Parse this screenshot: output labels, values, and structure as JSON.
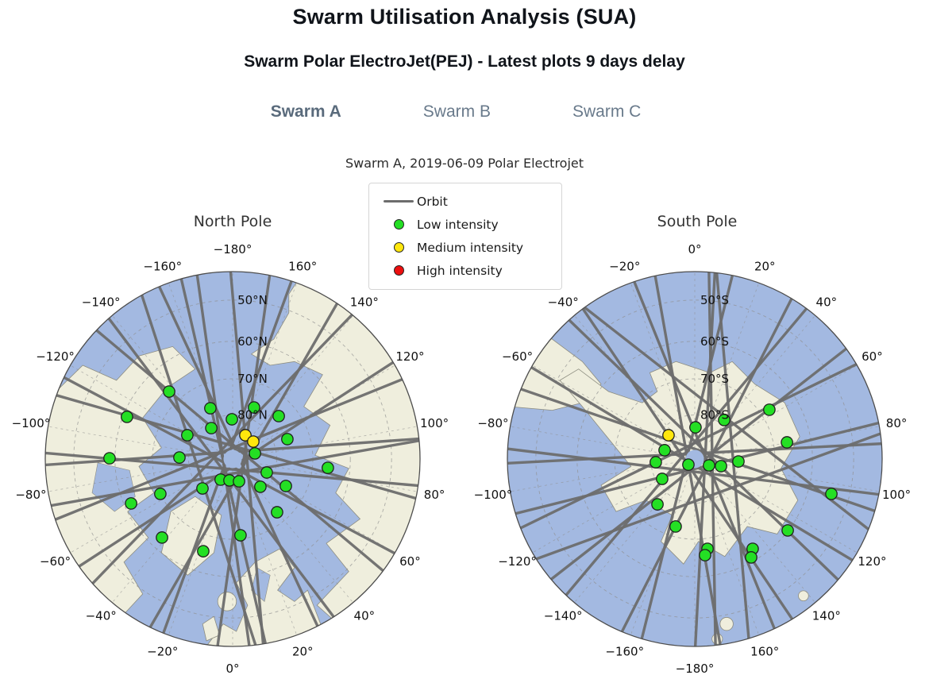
{
  "page": {
    "title": "Swarm Utilisation Analysis (SUA)",
    "subtitle": "Swarm Polar ElectroJet(PEJ) - Latest plots 9 days delay",
    "tabs": [
      {
        "label": "Swarm A",
        "active": true
      },
      {
        "label": "Swarm B",
        "active": false
      },
      {
        "label": "Swarm C",
        "active": false
      }
    ]
  },
  "figure": {
    "title": "Swarm A, 2019-06-09 Polar Electrojet",
    "legend": {
      "items": [
        {
          "swatch": "line",
          "color_key": "orbit",
          "label": "Orbit"
        },
        {
          "swatch": "dot",
          "color_key": "low",
          "label": "Low intensity"
        },
        {
          "swatch": "dot",
          "color_key": "medium",
          "label": "Medium intensity"
        },
        {
          "swatch": "dot",
          "color_key": "high",
          "label": "High intensity"
        }
      ]
    }
  },
  "colors": {
    "ocean": "#a3b9e1",
    "land": "#efeedd",
    "coast": "#8d8d80",
    "grid": "#8f8f8f",
    "orbit": "#6d6d6d",
    "rim": "#4d4d4d",
    "dot_edge": "#1f1f1f",
    "low": "#24df24",
    "medium": "#ffe70d",
    "high": "#ec0f0f",
    "tick_text": "#111111",
    "tab_active": "#5a6b7c",
    "tab_inactive": "#697a8b"
  },
  "chart_data": [
    {
      "type": "polar_orbit_map",
      "pole": "North Pole",
      "hemisphere": "north",
      "lon_tick_step_deg": 20,
      "lon_labels": [
        "−180°",
        "160°",
        "140°",
        "120°",
        "100°",
        "80°",
        "60°",
        "40°",
        "20°",
        "0°",
        "−20°",
        "−40°",
        "−60°",
        "−80°",
        "−100°",
        "−120°",
        "−140°",
        "−160°"
      ],
      "lat_rings": [
        {
          "label": "50°N",
          "r": 0.848
        },
        {
          "label": "60°N",
          "r": 0.628
        },
        {
          "label": "70°N",
          "r": 0.428
        },
        {
          "label": "80°N",
          "r": 0.235
        }
      ],
      "orbits": [
        {
          "phi": 352,
          "d": -12
        },
        {
          "phi": 8,
          "d": 14
        },
        {
          "phi": 20,
          "d": -7
        },
        {
          "phi": 30,
          "d": 16
        },
        {
          "phi": 44,
          "d": -18
        },
        {
          "phi": 57,
          "d": 8
        },
        {
          "phi": 68,
          "d": -13
        },
        {
          "phi": 80,
          "d": 18
        },
        {
          "phi": 86,
          "d": -9
        },
        {
          "phi": 95,
          "d": 13
        },
        {
          "phi": 106,
          "d": -16
        },
        {
          "phi": 118,
          "d": 9
        },
        {
          "phi": 130,
          "d": -14
        },
        {
          "phi": 143,
          "d": 18
        },
        {
          "phi": 155,
          "d": -8
        },
        {
          "phi": 167,
          "d": 12
        },
        {
          "phi": 175,
          "d": -18
        },
        {
          "phi": 162,
          "d": 45
        }
      ],
      "points": [
        {
          "x": -0.339,
          "y": -0.36,
          "i": "low"
        },
        {
          "x": -0.564,
          "y": -0.225,
          "i": "low"
        },
        {
          "x": -0.119,
          "y": -0.271,
          "i": "low"
        },
        {
          "x": 0.114,
          "y": -0.275,
          "i": "low"
        },
        {
          "x": -0.004,
          "y": -0.212,
          "i": "low"
        },
        {
          "x": 0.246,
          "y": -0.229,
          "i": "low"
        },
        {
          "x": -0.114,
          "y": -0.165,
          "i": "low"
        },
        {
          "x": -0.242,
          "y": -0.127,
          "i": "low"
        },
        {
          "x": 0.068,
          "y": -0.127,
          "i": "medium"
        },
        {
          "x": 0.11,
          "y": -0.093,
          "i": "medium"
        },
        {
          "x": 0.292,
          "y": -0.106,
          "i": "low"
        },
        {
          "x": 0.119,
          "y": -0.03,
          "i": "low"
        },
        {
          "x": -0.284,
          "y": -0.008,
          "i": "low"
        },
        {
          "x": -0.657,
          "y": -0.004,
          "i": "low"
        },
        {
          "x": 0.508,
          "y": 0.047,
          "i": "low"
        },
        {
          "x": 0.182,
          "y": 0.072,
          "i": "low"
        },
        {
          "x": -0.064,
          "y": 0.11,
          "i": "low"
        },
        {
          "x": -0.017,
          "y": 0.114,
          "i": "low"
        },
        {
          "x": 0.034,
          "y": 0.119,
          "i": "low"
        },
        {
          "x": -0.161,
          "y": 0.157,
          "i": "low"
        },
        {
          "x": 0.148,
          "y": 0.148,
          "i": "low"
        },
        {
          "x": 0.284,
          "y": 0.144,
          "i": "low"
        },
        {
          "x": -0.386,
          "y": 0.186,
          "i": "low"
        },
        {
          "x": -0.542,
          "y": 0.237,
          "i": "low"
        },
        {
          "x": 0.237,
          "y": 0.284,
          "i": "low"
        },
        {
          "x": 0.042,
          "y": 0.407,
          "i": "low"
        },
        {
          "x": -0.377,
          "y": 0.419,
          "i": "low"
        },
        {
          "x": -0.157,
          "y": 0.492,
          "i": "low"
        }
      ]
    },
    {
      "type": "polar_orbit_map",
      "pole": "South Pole",
      "hemisphere": "south",
      "lon_tick_step_deg": 20,
      "lon_labels": [
        "0°",
        "20°",
        "40°",
        "60°",
        "80°",
        "100°",
        "120°",
        "140°",
        "160°",
        "−180°",
        "−160°",
        "−140°",
        "−120°",
        "−100°",
        "−80°",
        "−60°",
        "−40°",
        "−20°"
      ],
      "lat_rings": [
        {
          "label": "50°S",
          "r": 0.848
        },
        {
          "label": "60°S",
          "r": 0.628
        },
        {
          "label": "70°S",
          "r": 0.428
        },
        {
          "label": "80°S",
          "r": 0.235
        }
      ],
      "orbits": [
        {
          "phi": 3,
          "d": 13
        },
        {
          "phi": 14,
          "d": -10
        },
        {
          "phi": 27,
          "d": 17
        },
        {
          "phi": 40,
          "d": -14
        },
        {
          "phi": 52,
          "d": 8
        },
        {
          "phi": 64,
          "d": -18
        },
        {
          "phi": 76,
          "d": 12
        },
        {
          "phi": 87,
          "d": -7
        },
        {
          "phi": 97,
          "d": 16
        },
        {
          "phi": 109,
          "d": -12
        },
        {
          "phi": 121,
          "d": 7
        },
        {
          "phi": 134,
          "d": -16
        },
        {
          "phi": 146,
          "d": 11
        },
        {
          "phi": 158,
          "d": -13
        },
        {
          "phi": 170,
          "d": 9
        },
        {
          "phi": 179,
          "d": -22
        },
        {
          "phi": 175,
          "d": -48
        },
        {
          "phi": 128,
          "d": -65
        },
        {
          "phi": 70,
          "d": 50
        }
      ],
      "points": [
        {
          "x": 0.398,
          "y": -0.263,
          "i": "low"
        },
        {
          "x": 0.157,
          "y": -0.208,
          "i": "low"
        },
        {
          "x": 0.004,
          "y": -0.169,
          "i": "low"
        },
        {
          "x": -0.14,
          "y": -0.127,
          "i": "medium"
        },
        {
          "x": 0.492,
          "y": -0.089,
          "i": "low"
        },
        {
          "x": -0.161,
          "y": -0.047,
          "i": "low"
        },
        {
          "x": -0.208,
          "y": 0.017,
          "i": "low"
        },
        {
          "x": -0.034,
          "y": 0.03,
          "i": "low"
        },
        {
          "x": 0.076,
          "y": 0.034,
          "i": "low"
        },
        {
          "x": 0.14,
          "y": 0.038,
          "i": "low"
        },
        {
          "x": 0.233,
          "y": 0.013,
          "i": "low"
        },
        {
          "x": -0.174,
          "y": 0.106,
          "i": "low"
        },
        {
          "x": 0.729,
          "y": 0.186,
          "i": "low"
        },
        {
          "x": -0.199,
          "y": 0.242,
          "i": "low"
        },
        {
          "x": -0.102,
          "y": 0.36,
          "i": "low"
        },
        {
          "x": 0.496,
          "y": 0.381,
          "i": "low"
        },
        {
          "x": 0.068,
          "y": 0.479,
          "i": "low"
        },
        {
          "x": 0.055,
          "y": 0.513,
          "i": "low"
        },
        {
          "x": 0.309,
          "y": 0.479,
          "i": "low"
        },
        {
          "x": 0.301,
          "y": 0.525,
          "i": "low"
        }
      ]
    }
  ]
}
